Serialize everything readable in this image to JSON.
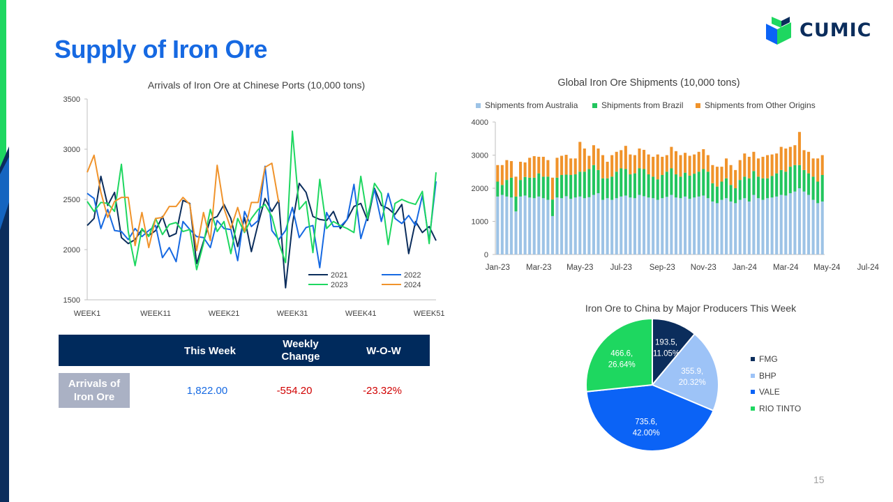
{
  "slide": {
    "title": "Supply of Iron Ore",
    "logo_text": "CUMIC",
    "page_number": "15",
    "colors": {
      "title": "#1669e2",
      "navy": "#002a5c",
      "accent_green": "#00c853",
      "accent_blue": "#1565c0"
    }
  },
  "table": {
    "headers": [
      "This Week",
      "Weekly Change",
      "W-O-W"
    ],
    "header_lines": {
      "weekly_1": "Weekly",
      "weekly_2": "Change"
    },
    "row_label_1": "Arrivals of",
    "row_label_2": "Iron Ore",
    "this_week": "1,822.00",
    "weekly_change": "-554.20",
    "wow": "-23.32%"
  },
  "chart_data": [
    {
      "type": "line",
      "title": "Arrivals of Iron Ore at Chinese Ports (10,000 tons)",
      "x_tick_labels": [
        "WEEK1",
        "WEEK11",
        "WEEK21",
        "WEEK31",
        "WEEK41",
        "WEEK51"
      ],
      "x_tick_positions": [
        1,
        11,
        21,
        31,
        41,
        51
      ],
      "xlim": [
        1,
        52
      ],
      "ylim": [
        1500,
        3500
      ],
      "y_ticks": [
        1500,
        2000,
        2500,
        3000,
        3500
      ],
      "legend": [
        "2021",
        "2022",
        "2023",
        "2024"
      ],
      "series": [
        {
          "name": "2021",
          "color": "#0b2d5c",
          "values": [
            2240,
            2310,
            2730,
            2440,
            2570,
            2120,
            2060,
            2100,
            2200,
            2140,
            2190,
            2330,
            2130,
            2160,
            2490,
            2460,
            1860,
            2080,
            2300,
            2330,
            2450,
            2310,
            2030,
            2320,
            1980,
            2260,
            2510,
            2380,
            2490,
            1620,
            2250,
            2660,
            2570,
            2330,
            2300,
            2290,
            2380,
            2210,
            2300,
            2430,
            2460,
            2290,
            2610,
            2440,
            2410,
            2350,
            2450,
            1960,
            2280,
            2170,
            2230,
            2090
          ]
        },
        {
          "name": "2022",
          "color": "#1669e2",
          "values": [
            2560,
            2510,
            2210,
            2400,
            2190,
            2180,
            2100,
            2210,
            2130,
            2190,
            2240,
            1920,
            2020,
            1880,
            2280,
            2200,
            2130,
            2120,
            2020,
            2290,
            2210,
            2200,
            1890,
            2380,
            2230,
            2290,
            2830,
            2190,
            2100,
            2190,
            2420,
            2120,
            2220,
            2240,
            1820,
            2370,
            2230,
            2230,
            2300,
            2650,
            2110,
            2340,
            2600,
            2280,
            2560,
            2310,
            2260,
            2340,
            2240,
            2540,
            2090,
            2680
          ]
        },
        {
          "name": "2023",
          "color": "#1ed760",
          "values": [
            2480,
            2380,
            2470,
            2460,
            2380,
            2850,
            2180,
            1840,
            2210,
            2130,
            2310,
            2150,
            2250,
            2270,
            2180,
            2200,
            1800,
            2060,
            2400,
            2180,
            2280,
            1960,
            2310,
            2170,
            2310,
            2400,
            2450,
            2330,
            2070,
            1870,
            3180,
            2400,
            2480,
            1970,
            2700,
            2210,
            2280,
            2240,
            2210,
            2170,
            2730,
            2310,
            2660,
            2560,
            2050,
            2460,
            2500,
            2470,
            2450,
            2580,
            2060,
            2770
          ]
        },
        {
          "name": "2024",
          "color": "#f0932b",
          "values": [
            2770,
            2940,
            2570,
            2320,
            2480,
            2520,
            2520,
            2040,
            2370,
            2020,
            2310,
            2320,
            2430,
            2430,
            2520,
            2450,
            1990,
            2370,
            2090,
            2840,
            2410,
            2210,
            2420,
            2180,
            2470,
            2470,
            2820,
            2860,
            2470
          ]
        }
      ]
    },
    {
      "type": "bar",
      "stacked": true,
      "title": "Global Iron Ore Shipments (10,000 tons)",
      "ylim": [
        0,
        4000
      ],
      "y_ticks": [
        0,
        1000,
        2000,
        3000,
        4000
      ],
      "x_tick_labels": [
        "Jan-23",
        "Mar-23",
        "May-23",
        "Jul-23",
        "Sep-23",
        "Nov-23",
        "Jan-24",
        "Mar-24",
        "May-24",
        "Jul-24"
      ],
      "x_tick_every": 9,
      "legend_position": "top",
      "series": [
        {
          "name": "Shipments from Australia",
          "color": "#9dc3e6",
          "values": [
            1750,
            1800,
            1750,
            1720,
            1300,
            1750,
            1780,
            1720,
            1700,
            1750,
            1700,
            1650,
            1160,
            1720,
            1700,
            1760,
            1680,
            1720,
            1750,
            1700,
            1730,
            1800,
            1850,
            1650,
            1700,
            1650,
            1700,
            1750,
            1780,
            1720,
            1700,
            1800,
            1760,
            1720,
            1700,
            1650,
            1700,
            1740,
            1800,
            1720,
            1700,
            1750,
            1680,
            1720,
            1750,
            1780,
            1700,
            1600,
            1550,
            1650,
            1700,
            1600,
            1550,
            1650,
            1700,
            1600,
            1800,
            1700,
            1650,
            1700,
            1720,
            1750,
            1800,
            1780,
            1850,
            1900,
            2000,
            1900,
            1800,
            1650,
            1550,
            1600
          ]
        },
        {
          "name": "Shipments from Brazil",
          "color": "#22c55e",
          "values": [
            450,
            300,
            500,
            600,
            450,
            500,
            560,
            600,
            620,
            700,
            650,
            700,
            500,
            600,
            700,
            650,
            720,
            700,
            750,
            800,
            850,
            900,
            700,
            650,
            600,
            700,
            800,
            850,
            800,
            700,
            750,
            800,
            820,
            700,
            650,
            620,
            700,
            760,
            800,
            700,
            650,
            720,
            700,
            720,
            750,
            800,
            800,
            550,
            500,
            550,
            600,
            500,
            450,
            600,
            650,
            700,
            720,
            650,
            650,
            600,
            650,
            700,
            750,
            720,
            800,
            800,
            700,
            650,
            650,
            700,
            650,
            800
          ]
        },
        {
          "name": "Shipments from Other Origins",
          "color": "#f0932b",
          "values": [
            500,
            600,
            600,
            500,
            600,
            550,
            440,
            600,
            650,
            500,
            600,
            500,
            660,
            600,
            580,
            600,
            500,
            480,
            900,
            700,
            400,
            600,
            650,
            700,
            500,
            650,
            600,
            550,
            700,
            600,
            550,
            600,
            580,
            600,
            600,
            750,
            550,
            500,
            650,
            700,
            650,
            600,
            600,
            580,
            600,
            600,
            500,
            550,
            600,
            450,
            600,
            600,
            550,
            600,
            700,
            650,
            580,
            550,
            650,
            700,
            650,
            600,
            700,
            700,
            600,
            600,
            1000,
            600,
            650,
            550,
            700,
            600
          ]
        }
      ]
    },
    {
      "type": "pie",
      "title": "Iron Ore to China by Major Producers This Week",
      "legend_position": "right",
      "slices": [
        {
          "name": "FMG",
          "value": 193.5,
          "percent": "11.05%",
          "label1": "193.5,",
          "label2": "11.05%",
          "color": "#0b2d5c"
        },
        {
          "name": "BHP",
          "value": 355.9,
          "percent": "20.32%",
          "label1": "355.9,",
          "label2": "20.32%",
          "color": "#9dc3f7"
        },
        {
          "name": "VALE",
          "value": 735.6,
          "percent": "42.00%",
          "label1": "735.6,",
          "label2": "42.00%",
          "color": "#0b63f6"
        },
        {
          "name": "RIO TINTO",
          "value": 466.6,
          "percent": "26.64%",
          "label1": "466.6,",
          "label2": "26.64%",
          "color": "#1ed760"
        }
      ]
    }
  ]
}
